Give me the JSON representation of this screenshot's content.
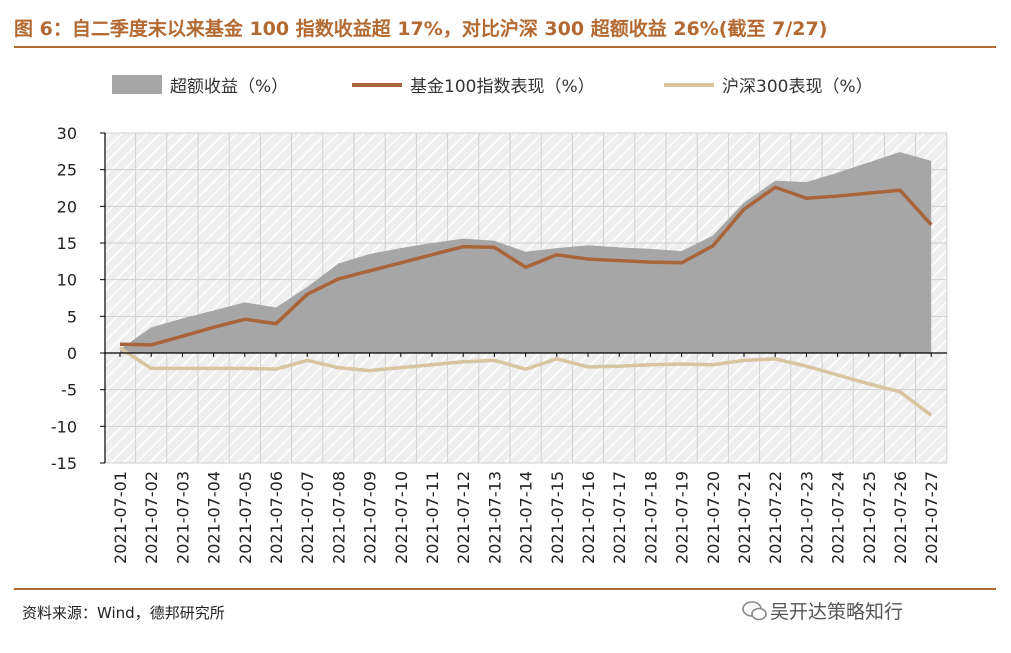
{
  "title": "图 6：自二季度末以来基金 100 指数收益超 17%，对比沪深 300 超额收益 26%(截至 7/27)",
  "source": "资料来源：Wind，德邦研究所",
  "watermark": "吴开达策略知行",
  "colors": {
    "accent": "#b36a32",
    "area": "#a6a6a6",
    "fund_line": "#a9643a",
    "csi_line": "#d9c4a0",
    "plot_bg": "#f2f2f2",
    "hatch": "#ffffff"
  },
  "chart_data": {
    "type": "area+line",
    "categories": [
      "2021-07-01",
      "2021-07-02",
      "2021-07-03",
      "2021-07-04",
      "2021-07-05",
      "2021-07-06",
      "2021-07-07",
      "2021-07-08",
      "2021-07-09",
      "2021-07-10",
      "2021-07-11",
      "2021-07-12",
      "2021-07-13",
      "2021-07-14",
      "2021-07-15",
      "2021-07-16",
      "2021-07-17",
      "2021-07-18",
      "2021-07-19",
      "2021-07-20",
      "2021-07-21",
      "2021-07-22",
      "2021-07-23",
      "2021-07-24",
      "2021-07-25",
      "2021-07-26",
      "2021-07-27"
    ],
    "series": [
      {
        "name": "超额收益（%）",
        "kind": "area",
        "values": [
          0.5,
          3.5,
          4.7,
          5.8,
          6.9,
          6.2,
          9.0,
          12.2,
          13.5,
          14.3,
          15.0,
          15.6,
          15.3,
          13.8,
          14.3,
          14.7,
          14.4,
          14.2,
          13.9,
          16.0,
          20.5,
          23.5,
          23.3,
          24.6,
          26.0,
          27.4,
          26.2
        ]
      },
      {
        "name": "基金100指数表现（%）",
        "kind": "line",
        "values": [
          1.2,
          1.1,
          2.3,
          3.5,
          4.6,
          4.0,
          8.0,
          10.1,
          11.2,
          12.3,
          13.4,
          14.5,
          14.4,
          11.7,
          13.4,
          12.8,
          12.6,
          12.4,
          12.3,
          14.6,
          19.6,
          22.6,
          21.1,
          21.4,
          21.8,
          22.2,
          17.5
        ]
      },
      {
        "name": "沪深300表现（%）",
        "kind": "line",
        "values": [
          0.7,
          -2.1,
          -2.1,
          -2.1,
          -2.1,
          -2.2,
          -1.0,
          -2.0,
          -2.4,
          -2.0,
          -1.6,
          -1.2,
          -1.0,
          -2.2,
          -0.8,
          -1.9,
          -1.8,
          -1.6,
          -1.5,
          -1.6,
          -1.0,
          -0.8,
          -1.8,
          -3.0,
          -4.2,
          -5.3,
          -8.5
        ]
      }
    ],
    "yticks": [
      "30",
      "25",
      "20",
      "15",
      "10",
      "5",
      "0",
      "-5",
      "-10",
      "-15"
    ],
    "ylim": [
      -15,
      30
    ],
    "legend_position": "top"
  }
}
